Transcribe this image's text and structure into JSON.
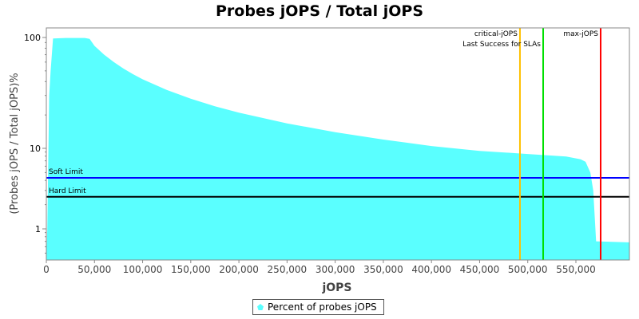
{
  "chart_data": {
    "type": "area",
    "title": "Probes jOPS / Total jOPS",
    "xlabel": "jOPS",
    "ylabel": "(Probes jOPS / Total jOPS)%",
    "y_scale": "log",
    "xlim": [
      0,
      605000
    ],
    "ylim": [
      0.41,
      122
    ],
    "x_ticks": [
      0,
      50000,
      100000,
      150000,
      200000,
      250000,
      300000,
      350000,
      400000,
      450000,
      500000,
      550000
    ],
    "x_tick_labels": [
      "0",
      "50,000",
      "100,000",
      "150,000",
      "200,000",
      "250,000",
      "300,000",
      "350,000",
      "400,000",
      "450,000",
      "500,000",
      "550,000"
    ],
    "y_ticks": [
      1,
      10,
      100
    ],
    "y_tick_labels": [
      "1",
      "10",
      "100"
    ],
    "grid": false,
    "legend_placement": "bottom",
    "series": [
      {
        "name": "Percent of probes jOPS",
        "color": "#5affff",
        "x": [
          0,
          1000,
          3000,
          4500,
          7000,
          20000,
          40000,
          45000,
          50000,
          60000,
          70000,
          80000,
          90000,
          100000,
          125000,
          150000,
          175000,
          200000,
          250000,
          300000,
          350000,
          400000,
          450000,
          500000,
          540000,
          555000,
          560000,
          565000,
          568000,
          571000,
          605000
        ],
        "y": [
          0.41,
          1,
          30,
          50,
          98,
          99,
          99,
          97,
          84,
          70,
          60,
          52.5,
          46.7,
          42,
          33.6,
          28,
          24,
          21,
          16.8,
          14,
          12,
          10.5,
          9.3,
          8.5,
          7.9,
          7.3,
          6.8,
          5,
          3,
          0.7,
          0.68
        ]
      }
    ],
    "horizontal_lines": [
      {
        "label": "Soft Limit",
        "value": 4.3,
        "color": "#0000ff"
      },
      {
        "label": "Hard Limit",
        "value": 2.5,
        "color": "#000000"
      }
    ],
    "vertical_lines": [
      {
        "label": "critical-jOPS",
        "value": 491900,
        "color": "#ffc000"
      },
      {
        "label": "Last Success for SLAs",
        "value": 516000,
        "color": "#00e000"
      },
      {
        "label": "max-jOPS",
        "value": 575700,
        "color": "#ff0000"
      }
    ]
  }
}
